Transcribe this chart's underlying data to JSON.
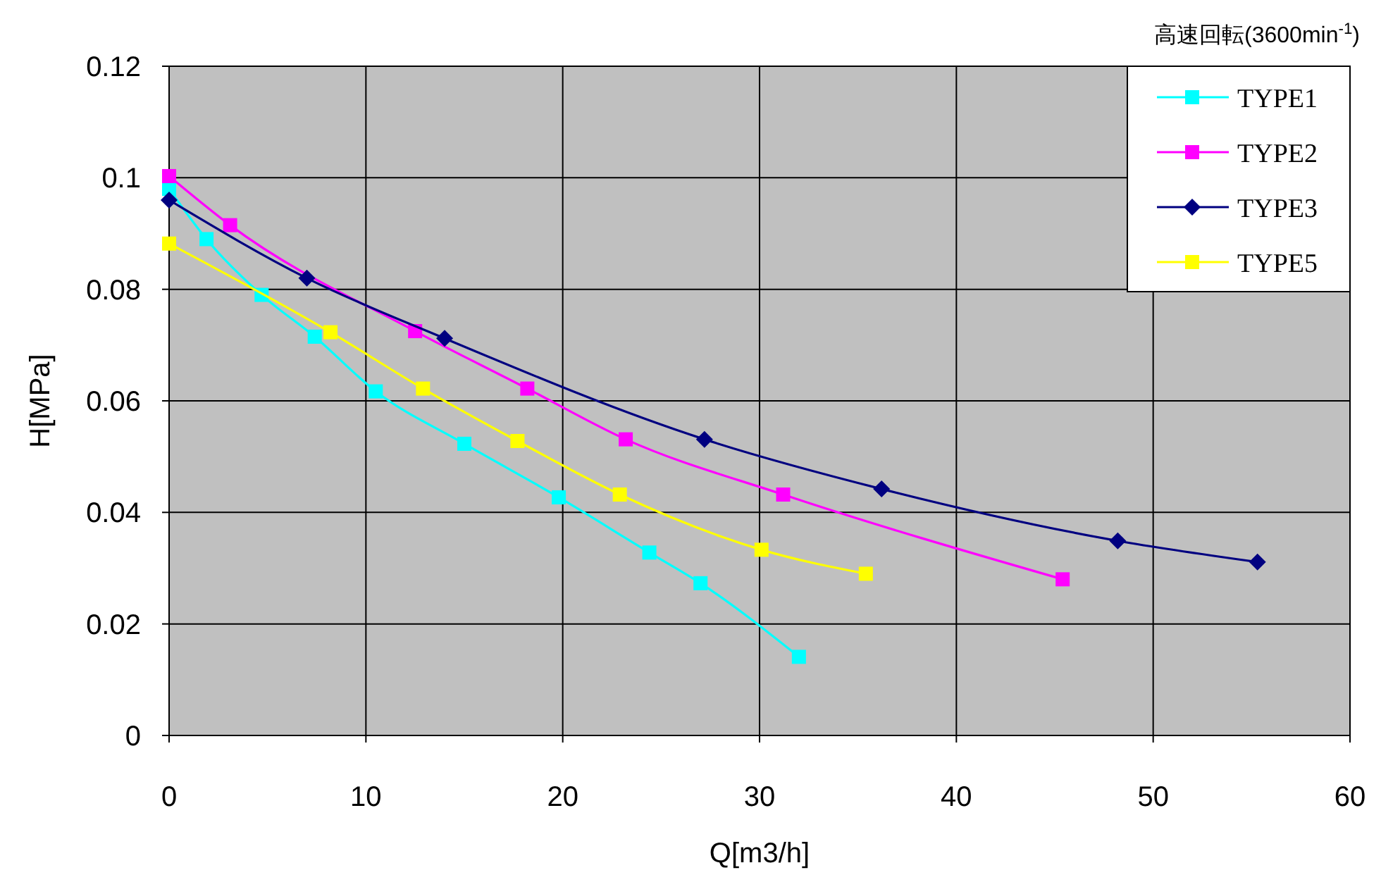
{
  "chart_data": {
    "type": "line",
    "title": "高速回転(3600min$^{-1}$)",
    "xlabel": "Q[m3/h]",
    "ylabel": "H[MPa]",
    "xlim": [
      0,
      60
    ],
    "xticks": [
      0,
      10,
      20,
      30,
      40,
      50,
      60
    ],
    "ylim": [
      0,
      0.12
    ],
    "yticks": [
      0,
      0.02,
      0.04,
      0.06,
      0.08,
      0.1,
      0.12
    ],
    "grid": true,
    "legend": "top right",
    "series": [
      {
        "name": "TYPE1",
        "color": "#00ffff",
        "marker": "square",
        "x": [
          0,
          1.9,
          4.7,
          7.4,
          10.5,
          15.0,
          19.8,
          24.4,
          27.0,
          32.0
        ],
        "values": [
          0.098,
          0.089,
          0.079,
          0.0715,
          0.0617,
          0.0523,
          0.0427,
          0.0328,
          0.0273,
          0.0141
        ]
      },
      {
        "name": "TYPE2",
        "color": "#ff00ff",
        "marker": "square",
        "x": [
          0,
          3.1,
          12.5,
          18.2,
          23.2,
          31.2,
          45.4
        ],
        "values": [
          0.1003,
          0.0915,
          0.0725,
          0.0622,
          0.0531,
          0.0432,
          0.028
        ]
      },
      {
        "name": "TYPE3",
        "color": "#000080",
        "marker": "diamond",
        "x": [
          0,
          7.0,
          14.0,
          27.2,
          36.2,
          48.2,
          55.3
        ],
        "values": [
          0.096,
          0.082,
          0.0712,
          0.0531,
          0.0442,
          0.0349,
          0.0311
        ]
      },
      {
        "name": "TYPE5",
        "color": "#ffff00",
        "marker": "square",
        "x": [
          0,
          8.2,
          12.9,
          17.7,
          22.9,
          30.1,
          35.4
        ],
        "values": [
          0.0882,
          0.0723,
          0.0622,
          0.0528,
          0.0432,
          0.0333,
          0.029
        ]
      }
    ]
  }
}
